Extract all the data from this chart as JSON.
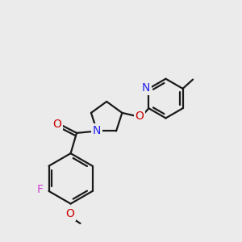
{
  "bg_color": "#ebebeb",
  "bond_color": "#1a1a1a",
  "N_color": "#2222ee",
  "O_color": "#cc0000",
  "F_color": "#cc44cc",
  "lw": 1.6,
  "fs": 10.0,
  "xlim": [
    0,
    10
  ],
  "ylim": [
    0,
    10
  ]
}
